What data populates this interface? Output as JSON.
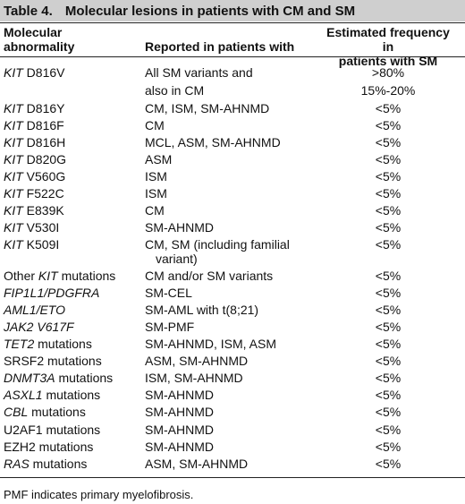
{
  "caption": {
    "number": "Table 4.",
    "title": "Molecular lesions in patients with CM and SM"
  },
  "headers": {
    "col1": [
      "Molecular",
      "abnormality"
    ],
    "col2": "Reported in patients with",
    "col3": [
      "Estimated frequency in",
      "patients with SM"
    ]
  },
  "rows": [
    {
      "gene": "KIT",
      "gene_italic": true,
      "suffix": " D816V",
      "reported": "All SM variants and",
      "freq": ">80%"
    },
    {
      "gene": "",
      "gene_italic": false,
      "suffix": "",
      "reported": "also in CM",
      "freq": "15%-20%"
    },
    {
      "gene": "KIT",
      "gene_italic": true,
      "suffix": " D816Y",
      "reported": "CM, ISM, SM-AHNMD",
      "freq": "<5%"
    },
    {
      "gene": "KIT",
      "gene_italic": true,
      "suffix": " D816F",
      "reported": "CM",
      "freq": "<5%"
    },
    {
      "gene": "KIT",
      "gene_italic": true,
      "suffix": " D816H",
      "reported": "MCL, ASM, SM-AHNMD",
      "freq": "<5%"
    },
    {
      "gene": "KIT",
      "gene_italic": true,
      "suffix": " D820G",
      "reported": "ASM",
      "freq": "<5%"
    },
    {
      "gene": "KIT",
      "gene_italic": true,
      "suffix": " V560G",
      "reported": "ISM",
      "freq": "<5%"
    },
    {
      "gene": "KIT",
      "gene_italic": true,
      "suffix": " F522C",
      "reported": "ISM",
      "freq": "<5%"
    },
    {
      "gene": "KIT",
      "gene_italic": true,
      "suffix": " E839K",
      "reported": "CM",
      "freq": "<5%"
    },
    {
      "gene": "KIT",
      "gene_italic": true,
      "suffix": " V530I",
      "reported": "SM-AHNMD",
      "freq": "<5%"
    },
    {
      "gene": "KIT",
      "gene_italic": true,
      "suffix": " K509I",
      "reported": "CM, SM (including familial",
      "reported_line2": "variant)",
      "freq": "<5%"
    },
    {
      "prefix": "Other ",
      "gene": "KIT",
      "gene_italic": true,
      "suffix": " mutations",
      "reported": "CM and/or SM variants",
      "freq": "<5%"
    },
    {
      "gene": "FIP1L1/PDGFRA",
      "gene_italic": true,
      "suffix": "",
      "reported": "SM-CEL",
      "freq": "<5%"
    },
    {
      "gene": "AML1/ETO",
      "gene_italic": true,
      "suffix": "",
      "reported": "SM-AML with t(8;21)",
      "freq": "<5%"
    },
    {
      "gene": "JAK2 V617F",
      "gene_italic": true,
      "suffix": "",
      "reported": "SM-PMF",
      "freq": "<5%"
    },
    {
      "gene": "TET2",
      "gene_italic": true,
      "suffix": " mutations",
      "reported": "SM-AHNMD, ISM, ASM",
      "freq": "<5%"
    },
    {
      "gene": "SRSF2",
      "gene_italic": false,
      "suffix": " mutations",
      "reported": "ASM, SM-AHNMD",
      "freq": "<5%"
    },
    {
      "gene": "DNMT3A",
      "gene_italic": true,
      "suffix": " mutations",
      "reported": "ISM, SM-AHNMD",
      "freq": "<5%"
    },
    {
      "gene": "ASXL1",
      "gene_italic": true,
      "suffix": " mutations",
      "reported": "SM-AHNMD",
      "freq": "<5%"
    },
    {
      "gene": "CBL",
      "gene_italic": true,
      "suffix": " mutations",
      "reported": "SM-AHNMD",
      "freq": "<5%"
    },
    {
      "gene": "U2AF1",
      "gene_italic": false,
      "suffix": " mutations",
      "reported": "SM-AHNMD",
      "freq": "<5%"
    },
    {
      "gene": "EZH2",
      "gene_italic": false,
      "suffix": " mutations",
      "reported": "SM-AHNMD",
      "freq": "<5%"
    },
    {
      "gene": "RAS",
      "gene_italic": true,
      "suffix": " mutations",
      "reported": "ASM, SM-AHNMD",
      "freq": "<5%"
    }
  ],
  "footnote": "PMF indicates primary myelofibrosis."
}
